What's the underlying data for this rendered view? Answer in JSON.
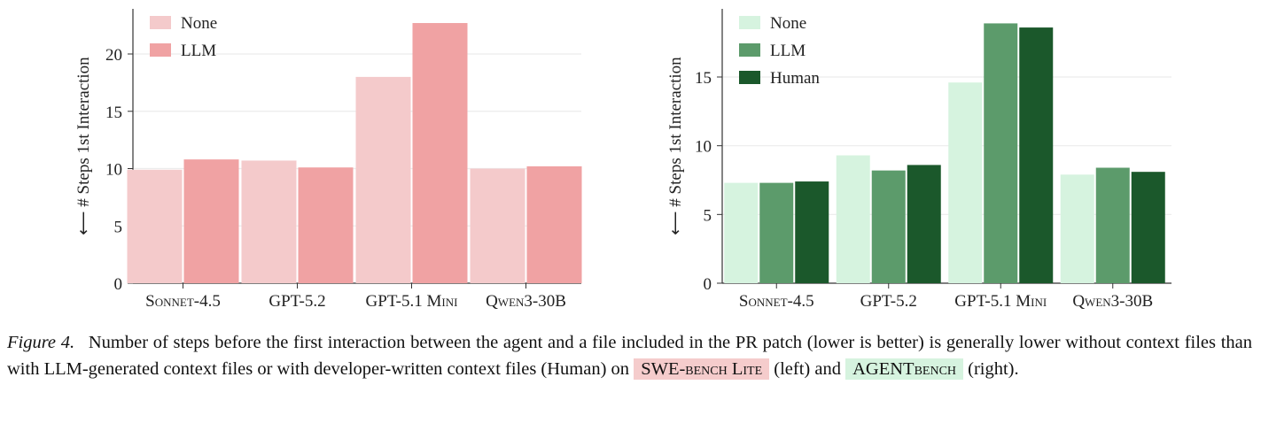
{
  "chart_data": [
    {
      "type": "bar",
      "ylabel": "⟵ # Steps 1st Interaction",
      "categories": [
        "Sonnet-4.5",
        "GPT-5.2",
        "GPT-5.1 Mini",
        "Qwen3-30B"
      ],
      "yticks": [
        0,
        5,
        10,
        15,
        20
      ],
      "ylim": [
        0,
        23.5
      ],
      "grid": true,
      "legend_position": "top-left",
      "series": [
        {
          "name": "None",
          "color": "#f4cacb",
          "values": [
            9.9,
            10.7,
            18.0,
            10.0
          ]
        },
        {
          "name": "LLM",
          "color": "#f0a2a3",
          "values": [
            10.8,
            10.1,
            22.7,
            10.2
          ]
        }
      ]
    },
    {
      "type": "bar",
      "ylabel": "⟵ # Steps 1st Interaction",
      "categories": [
        "Sonnet-4.5",
        "GPT-5.2",
        "GPT-5.1 Mini",
        "Qwen3-30B"
      ],
      "yticks": [
        0,
        5,
        10,
        15
      ],
      "ylim": [
        0,
        19.5
      ],
      "grid": true,
      "legend_position": "top-left",
      "series": [
        {
          "name": "None",
          "color": "#d6f3df",
          "values": [
            7.3,
            9.3,
            14.6,
            7.9
          ]
        },
        {
          "name": "LLM",
          "color": "#5c9b6b",
          "values": [
            7.3,
            8.2,
            18.9,
            8.4
          ]
        },
        {
          "name": "Human",
          "color": "#1b582b",
          "values": [
            7.4,
            8.6,
            18.6,
            8.1
          ]
        }
      ]
    }
  ],
  "caption": {
    "label": "Figure 4.",
    "text": "Number of steps before the first interaction between the agent and a file included in the PR patch (lower is better) is generally lower without context files than with LLM-generated context files or with developer-written context files (Human) on",
    "bench_left": "SWE-bench Lite",
    "mid": "(left) and",
    "bench_right": "AGENTbench",
    "end": "(right)."
  }
}
